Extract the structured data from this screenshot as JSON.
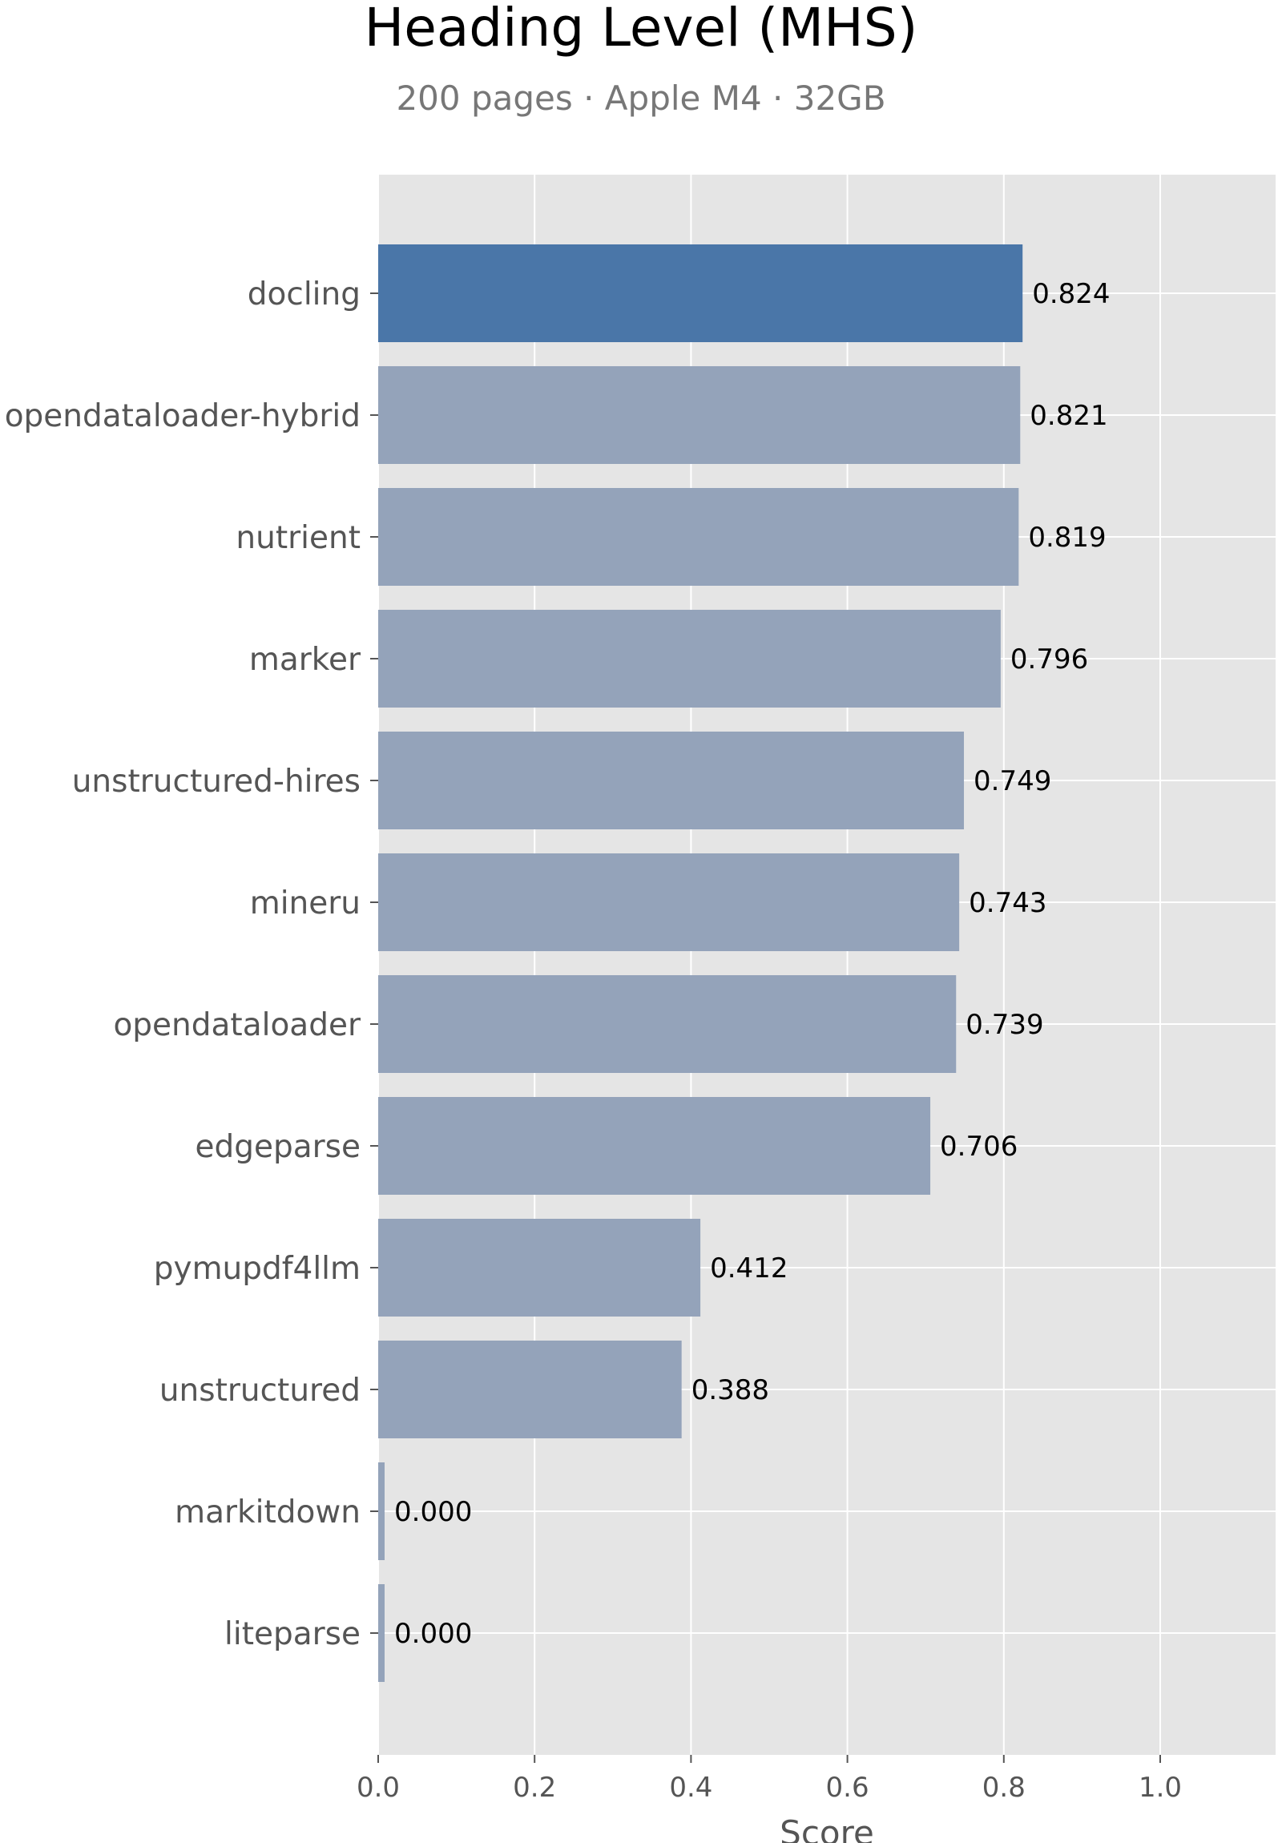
{
  "chart_data": {
    "type": "bar",
    "orientation": "horizontal",
    "title": "Heading Level (MHS)",
    "subtitle": "200 pages · Apple M4 · 32GB",
    "xlabel": "Score",
    "ylabel": "",
    "xlim": [
      0,
      1.15
    ],
    "xticks": [
      0.0,
      0.2,
      0.4,
      0.6,
      0.8,
      1.0
    ],
    "xtick_labels": [
      "0.0",
      "0.2",
      "0.4",
      "0.6",
      "0.8",
      "1.0"
    ],
    "grid": true,
    "categories": [
      "docling",
      "opendataloader-hybrid",
      "nutrient",
      "marker",
      "unstructured-hires",
      "mineru",
      "opendataloader",
      "edgeparse",
      "pymupdf4llm",
      "unstructured",
      "markitdown",
      "liteparse"
    ],
    "values": [
      0.824,
      0.821,
      0.819,
      0.796,
      0.749,
      0.743,
      0.739,
      0.706,
      0.412,
      0.388,
      0.0,
      0.0
    ],
    "value_labels": [
      "0.824",
      "0.821",
      "0.819",
      "0.796",
      "0.749",
      "0.743",
      "0.739",
      "0.706",
      "0.412",
      "0.388",
      "0.000",
      "0.000"
    ],
    "highlight_index": 0,
    "colors": {
      "highlight": "#4a76a8",
      "default": "#94a3ba",
      "plot_background": "#e5e5e5",
      "grid": "#ffffff"
    }
  }
}
